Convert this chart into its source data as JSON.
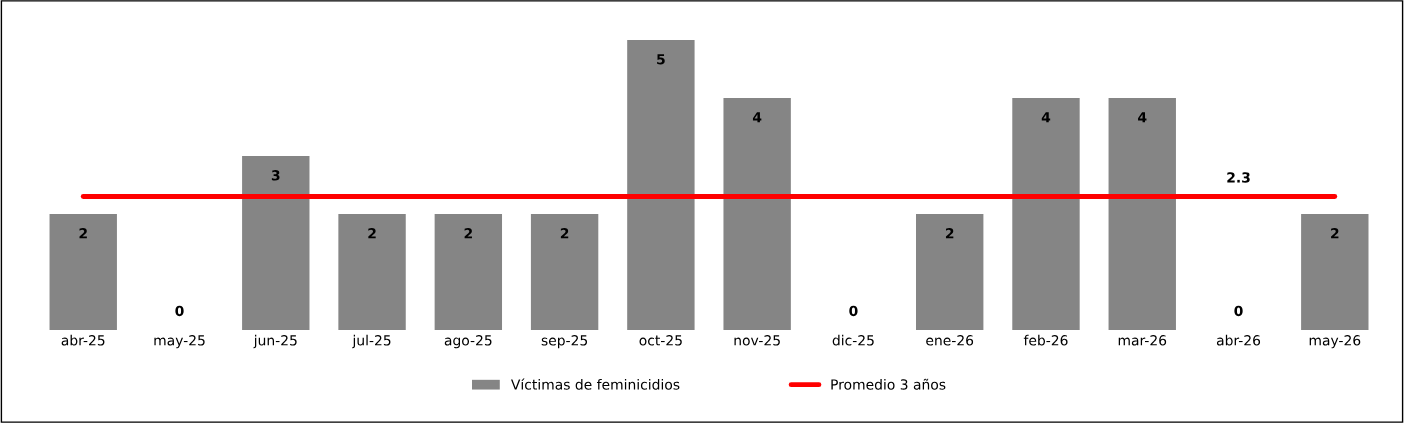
{
  "chart_data": {
    "type": "bar",
    "categories": [
      "abr-25",
      "may-25",
      "jun-25",
      "jul-25",
      "ago-25",
      "sep-25",
      "oct-25",
      "nov-25",
      "dic-25",
      "ene-26",
      "feb-26",
      "mar-26",
      "abr-26",
      "may-26"
    ],
    "series": [
      {
        "name": "Víctimas de feminicidios",
        "color": "#858585",
        "values": [
          2,
          0,
          3,
          2,
          2,
          2,
          5,
          4,
          0,
          2,
          4,
          4,
          0,
          2
        ],
        "value_labels": [
          "2",
          "0",
          "3",
          "2",
          "2",
          "2",
          "5",
          "4",
          "0",
          "2",
          "4",
          "4",
          "0",
          "2"
        ]
      },
      {
        "name": "Promedio 3 años",
        "type": "line",
        "color": "#ff0000",
        "values": [
          2.3,
          2.3,
          2.3,
          2.3,
          2.3,
          2.3,
          2.3,
          2.3,
          2.3,
          2.3,
          2.3,
          2.3,
          2.3,
          2.3
        ],
        "value_labels": [
          null,
          null,
          null,
          null,
          null,
          null,
          null,
          null,
          null,
          null,
          null,
          null,
          "2.3",
          null
        ]
      }
    ],
    "grid": false,
    "legend": "bottom",
    "tick_labels": "x"
  }
}
